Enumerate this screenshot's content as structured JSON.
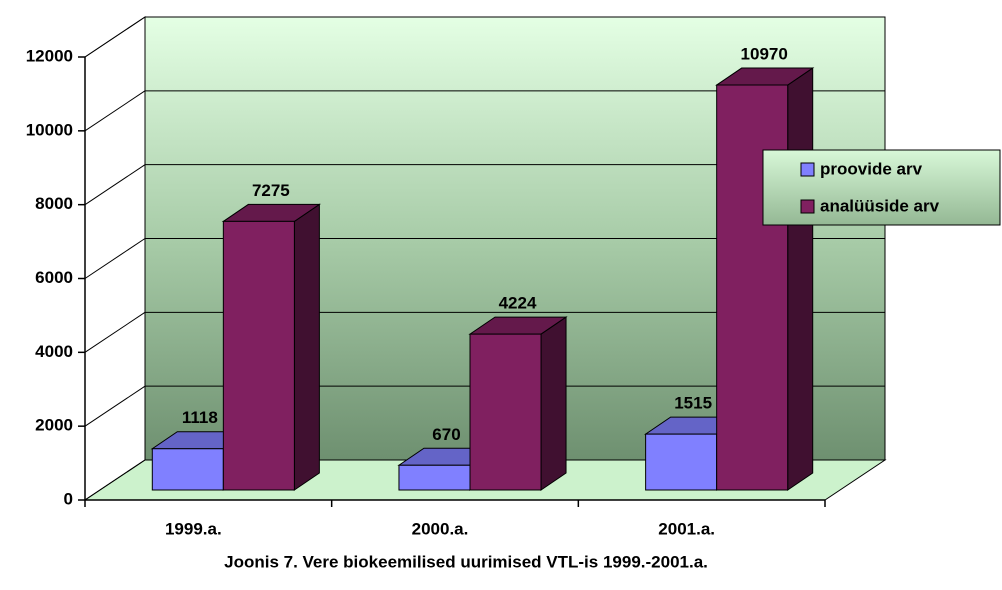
{
  "chart_data": {
    "type": "bar3d",
    "title": "Joonis 7. Vere biokeemilised uurimised VTL-is 1999.-2001.a.",
    "categories": [
      "1999.a.",
      "2000.a.",
      "2001.a."
    ],
    "series": [
      {
        "name": "proovide arv",
        "color": "#8080ff",
        "values": [
          1118,
          670,
          1515
        ]
      },
      {
        "name": "analüüside arv",
        "color": "#802060",
        "values": [
          7275,
          4224,
          10970
        ]
      }
    ],
    "ylim": [
      0,
      12000
    ],
    "yticks": [
      0,
      2000,
      4000,
      6000,
      8000,
      10000,
      12000
    ],
    "grid": true,
    "legend": "right"
  }
}
